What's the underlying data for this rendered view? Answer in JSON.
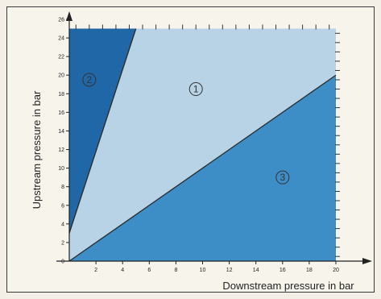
{
  "chart_data": {
    "type": "area",
    "title": "",
    "xlabel": "Downstream pressure in bar",
    "ylabel": "Upstream pressure in bar",
    "xlim": [
      0,
      20
    ],
    "ylim": [
      0,
      26
    ],
    "x_ticks": [
      2,
      4,
      6,
      8,
      10,
      12,
      14,
      16,
      18,
      20
    ],
    "y_ticks": [
      0,
      2,
      4,
      6,
      8,
      10,
      12,
      14,
      16,
      18,
      20,
      22,
      24,
      26
    ],
    "boundary_lines": [
      {
        "name": "upper",
        "points": [
          [
            0,
            3
          ],
          [
            5,
            25
          ]
        ]
      },
      {
        "name": "lower",
        "points": [
          [
            0,
            0
          ],
          [
            20,
            20
          ]
        ]
      }
    ],
    "plot_top_value": 25,
    "regions": [
      {
        "label": "1",
        "label_at": [
          9.5,
          18.5
        ],
        "color": "#b9d3e6",
        "polygon": [
          [
            0,
            3
          ],
          [
            0,
            0
          ],
          [
            20,
            20
          ],
          [
            20,
            25
          ],
          [
            5,
            25
          ]
        ]
      },
      {
        "label": "2",
        "label_at": [
          1.5,
          19.5
        ],
        "color": "#1f67a6",
        "polygon": [
          [
            0,
            3
          ],
          [
            5,
            25
          ],
          [
            0,
            25
          ]
        ]
      },
      {
        "label": "3",
        "label_at": [
          16,
          9
        ],
        "color": "#3d8ec7",
        "polygon": [
          [
            0,
            0
          ],
          [
            20,
            0
          ],
          [
            20,
            20
          ]
        ]
      }
    ],
    "grid": false
  }
}
